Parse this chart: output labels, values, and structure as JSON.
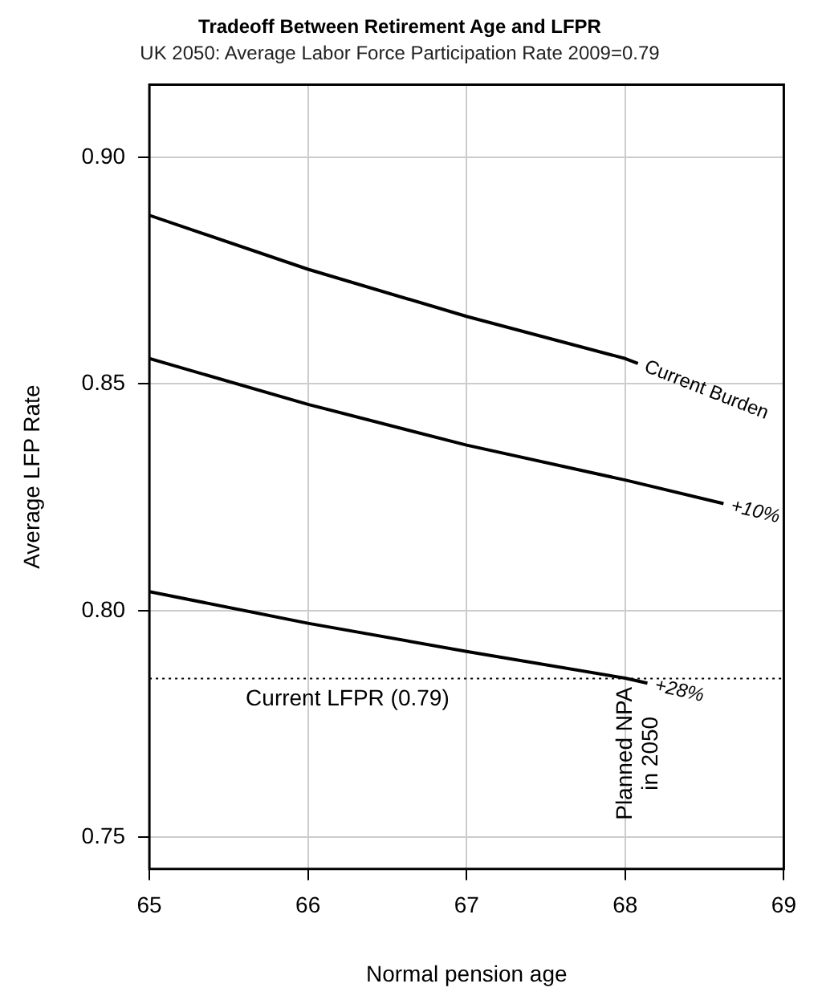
{
  "chart_data": {
    "type": "line",
    "title": "Tradeoff Between Retirement Age and LFPR",
    "subtitle": "UK 2050: Average Labor Force Participation Rate 2009=0.79",
    "xlabel": "Normal pension age",
    "ylabel": "Average LFP Rate",
    "xlim": [
      65,
      69
    ],
    "xticks": [
      65,
      66,
      67,
      68,
      69
    ],
    "ylim": [
      0.743,
      0.916
    ],
    "yticks": [
      {
        "value": 0.75,
        "label": "0.75"
      },
      {
        "value": 0.8,
        "label": "0.80"
      },
      {
        "value": 0.85,
        "label": "0.85"
      },
      {
        "value": 0.9,
        "label": "0.90"
      }
    ],
    "series": [
      {
        "name": "Current Burden",
        "color": "#000000",
        "x": [
          65,
          66,
          67,
          68,
          68.08
        ],
        "values": [
          0.8872,
          0.8753,
          0.8649,
          0.8556,
          0.8545
        ]
      },
      {
        "name": "+10%",
        "color": "#000000",
        "x": [
          65,
          66,
          67,
          68,
          68.62
        ],
        "values": [
          0.8556,
          0.8455,
          0.8365,
          0.8288,
          0.8236
        ]
      },
      {
        "name": "+28%",
        "color": "#000000",
        "x": [
          65,
          66,
          67,
          68,
          68.14
        ],
        "values": [
          0.8042,
          0.7972,
          0.791,
          0.7851,
          0.784
        ]
      }
    ],
    "ref_lines": [
      {
        "axis": "y",
        "value": 0.785,
        "label": "Current LFPR (0.79)",
        "color": "#000000",
        "line_style": "dotted"
      }
    ],
    "annotations": [
      "Planned NPA in 2050"
    ],
    "grid": true,
    "legend": false,
    "marker": "none",
    "line_style": "solid"
  }
}
